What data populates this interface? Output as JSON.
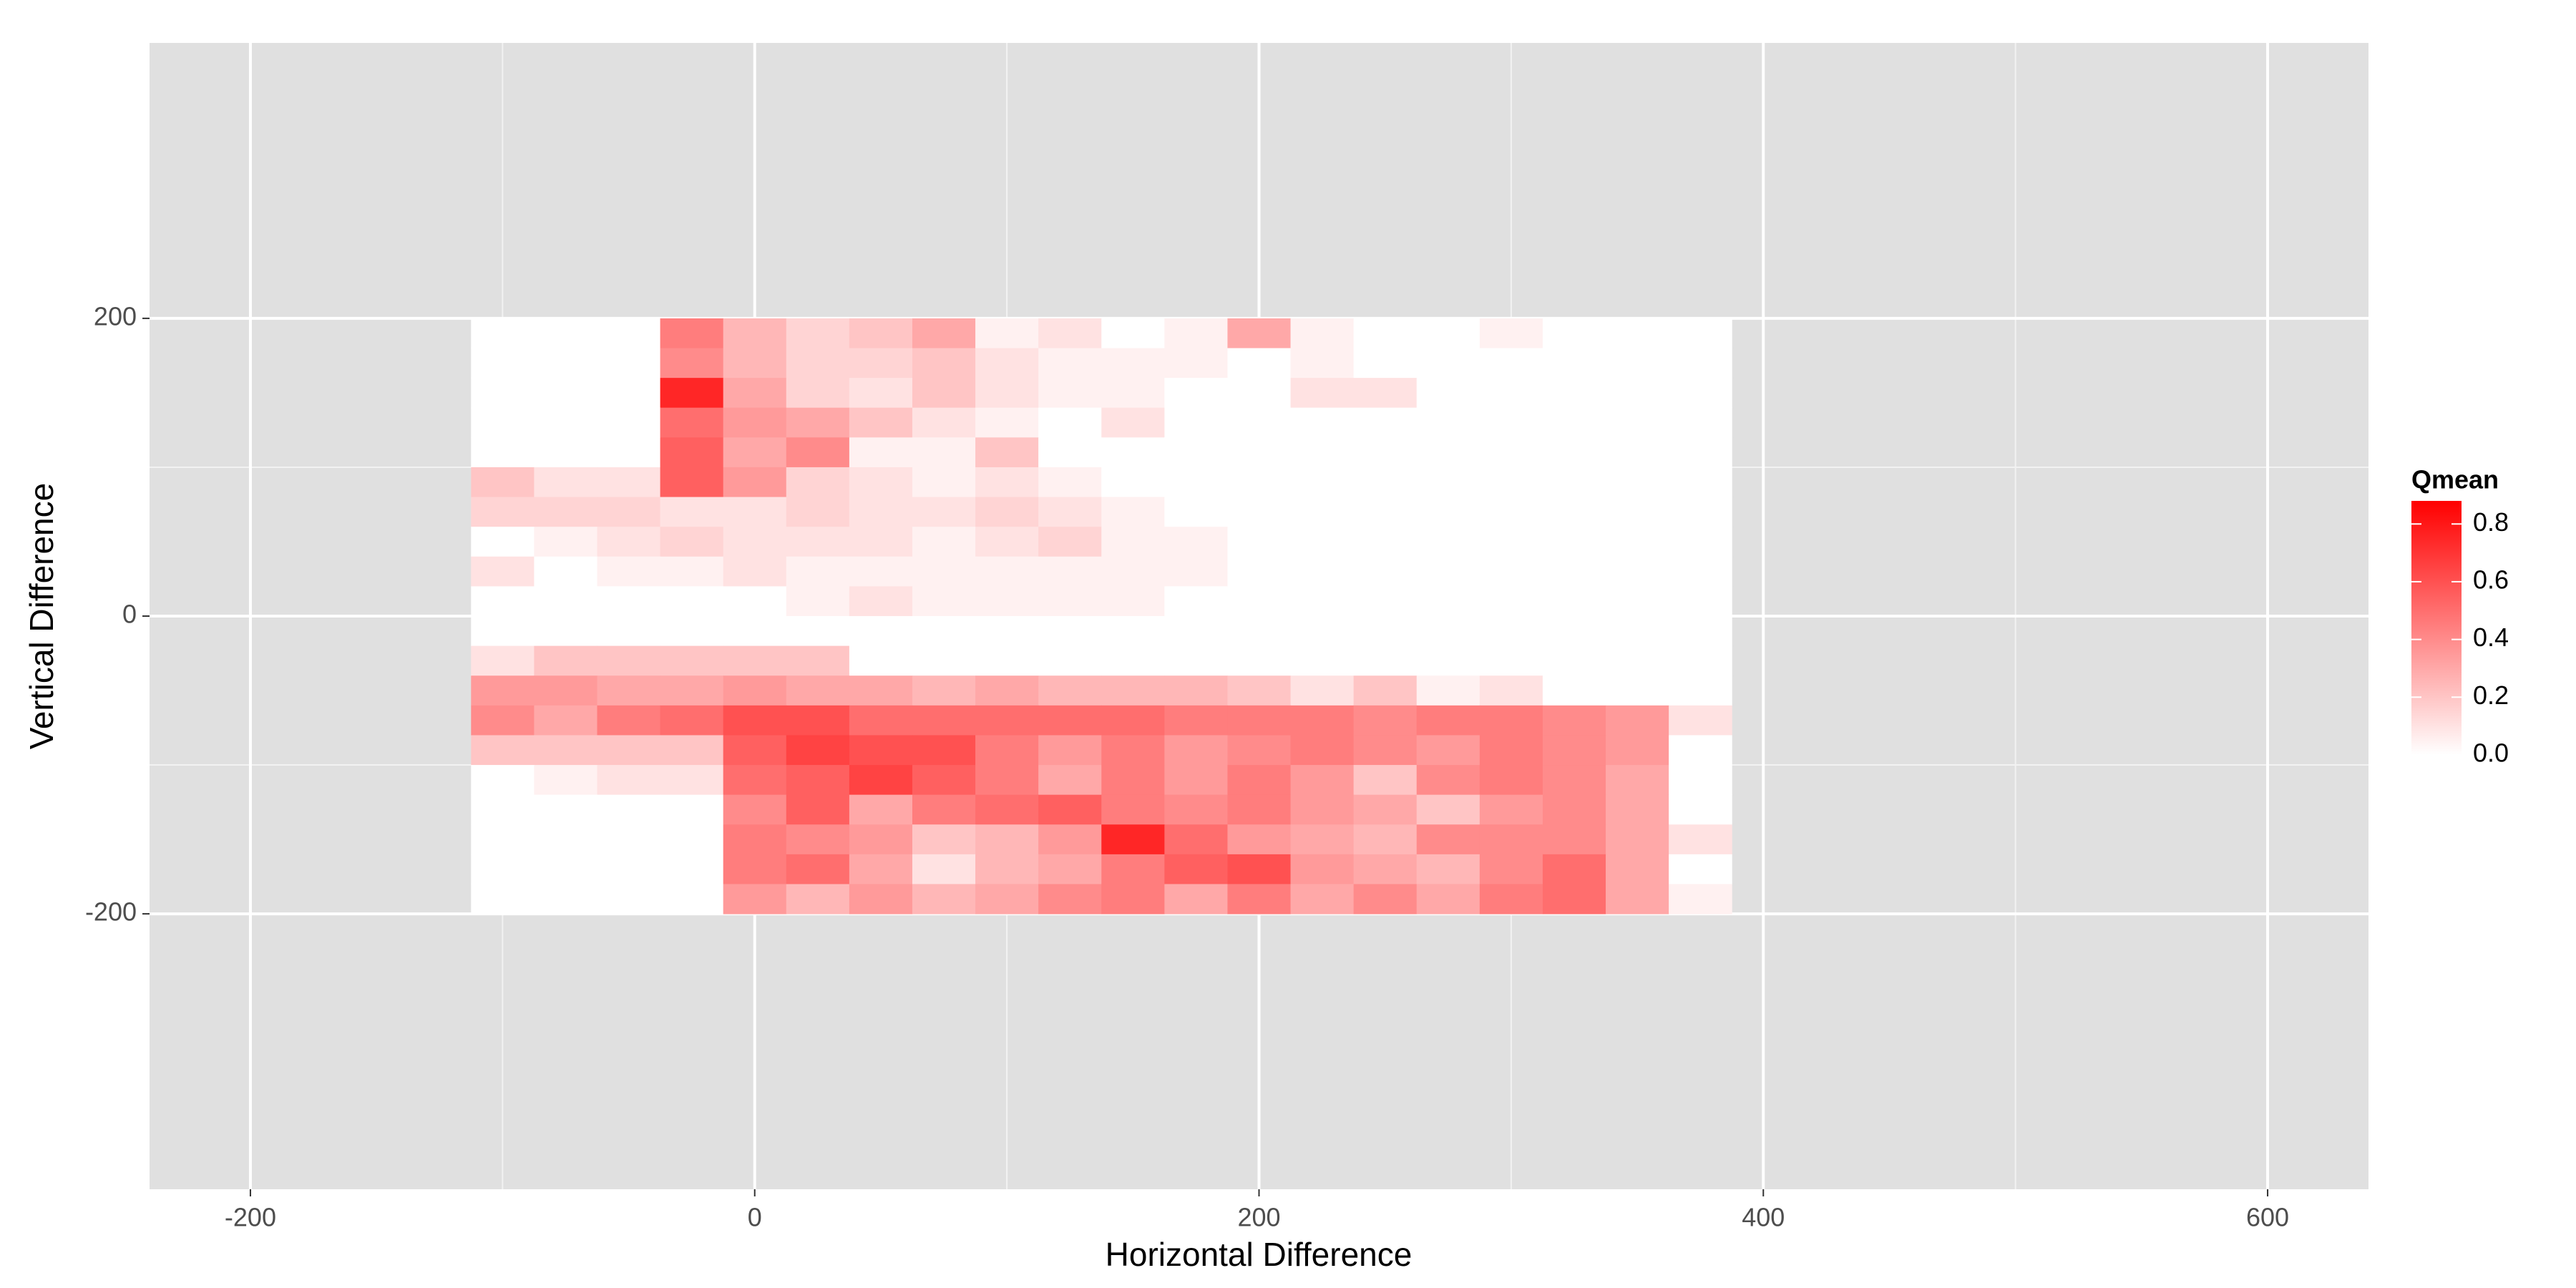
{
  "chart_data": {
    "type": "heatmap",
    "x_label": "Horizontal Difference",
    "y_label": "Vertical Difference",
    "legend_title": "Qmean",
    "xlim": [
      -240,
      640
    ],
    "xticks": [
      -200,
      0,
      200,
      400,
      600
    ],
    "ylim": [
      -385,
      385
    ],
    "yticks": [
      -200,
      0,
      200
    ],
    "grid": true,
    "colors": [
      "#ffffff",
      "#ff0000"
    ],
    "colorlim": [
      0,
      0.88
    ],
    "colorticks": [
      {
        "value": 0,
        "label": "0.0"
      },
      0.2,
      0.4,
      0.6,
      0.8
    ],
    "x_bins": [
      -112.5,
      -87.5,
      -62.5,
      -37.5,
      -12.5,
      12.5,
      37.5,
      62.5,
      87.5,
      112.5,
      137.5,
      162.5,
      187.5,
      212.5,
      237.5,
      262.5,
      287.5,
      312.5,
      337.5,
      362.5,
      387.5
    ],
    "y_bins": [
      200,
      180,
      160,
      140,
      120,
      100,
      80,
      60,
      40,
      20,
      0,
      -20,
      -40,
      -60,
      -80,
      -100,
      -120,
      -140,
      -160,
      -180,
      -200
    ],
    "values": [
      [
        0,
        0,
        0,
        0.45,
        0.25,
        0.15,
        0.2,
        0.3,
        0.05,
        0.1,
        0,
        0.05,
        0.3,
        0.05,
        0,
        0,
        0.05,
        0,
        0,
        0
      ],
      [
        0,
        0,
        0,
        0.4,
        0.25,
        0.15,
        0.15,
        0.2,
        0.1,
        0.05,
        0.05,
        0.05,
        0,
        0.05,
        0,
        0,
        0,
        0,
        0,
        0
      ],
      [
        0,
        0,
        0,
        0.75,
        0.3,
        0.15,
        0.1,
        0.2,
        0.1,
        0.05,
        0.05,
        0,
        0,
        0.1,
        0.1,
        0,
        0,
        0,
        0,
        0
      ],
      [
        0,
        0,
        0,
        0.5,
        0.35,
        0.3,
        0.2,
        0.1,
        0.05,
        0,
        0.1,
        0,
        0,
        0,
        0,
        0,
        0,
        0,
        0,
        0
      ],
      [
        0,
        0,
        0,
        0.55,
        0.3,
        0.4,
        0.05,
        0.05,
        0.2,
        0,
        0,
        0,
        0,
        0,
        0,
        0,
        0,
        0,
        0,
        0
      ],
      [
        0.2,
        0.1,
        0.1,
        0.55,
        0.35,
        0.15,
        0.1,
        0.05,
        0.1,
        0.05,
        0,
        0,
        0,
        0,
        0,
        0,
        0,
        0,
        0,
        0
      ],
      [
        0.15,
        0.15,
        0.15,
        0.1,
        0.1,
        0.15,
        0.1,
        0.1,
        0.15,
        0.1,
        0.05,
        0,
        0,
        0,
        0,
        0,
        0,
        0,
        0,
        0
      ],
      [
        0,
        0.05,
        0.1,
        0.15,
        0.1,
        0.1,
        0.1,
        0.05,
        0.1,
        0.15,
        0.05,
        0.05,
        0,
        0,
        0,
        0,
        0,
        0,
        0,
        0
      ],
      [
        0.1,
        0,
        0.05,
        0.05,
        0.1,
        0.05,
        0.05,
        0.05,
        0.05,
        0.05,
        0.05,
        0.05,
        0,
        0,
        0,
        0,
        0,
        0,
        0,
        0
      ],
      [
        0,
        0,
        0,
        0,
        0,
        0.05,
        0.1,
        0.05,
        0.05,
        0.05,
        0.05,
        0,
        0,
        0,
        0,
        0,
        0,
        0,
        0,
        0
      ],
      [
        0,
        0,
        0,
        0,
        0,
        0,
        0,
        0,
        0,
        0,
        0,
        0,
        0,
        0,
        0,
        0,
        0,
        0,
        0,
        0
      ],
      [
        0.1,
        0.2,
        0.2,
        0.2,
        0.2,
        0.2,
        0,
        0,
        0,
        0,
        0,
        0,
        0,
        0,
        0,
        0,
        0,
        0,
        0,
        0
      ],
      [
        0.35,
        0.35,
        0.3,
        0.3,
        0.35,
        0.3,
        0.3,
        0.25,
        0.3,
        0.25,
        0.25,
        0.25,
        0.2,
        0.1,
        0.2,
        0.05,
        0.1,
        0,
        0,
        0
      ],
      [
        0.4,
        0.3,
        0.45,
        0.5,
        0.6,
        0.6,
        0.5,
        0.5,
        0.5,
        0.5,
        0.5,
        0.45,
        0.45,
        0.45,
        0.4,
        0.45,
        0.45,
        0.4,
        0.35,
        0.1
      ],
      [
        0.2,
        0.2,
        0.2,
        0.2,
        0.55,
        0.65,
        0.6,
        0.6,
        0.45,
        0.35,
        0.45,
        0.35,
        0.4,
        0.45,
        0.4,
        0.35,
        0.45,
        0.4,
        0.35,
        0
      ],
      [
        0,
        0.05,
        0.1,
        0.1,
        0.5,
        0.55,
        0.65,
        0.55,
        0.45,
        0.3,
        0.45,
        0.35,
        0.45,
        0.35,
        0.2,
        0.4,
        0.45,
        0.4,
        0.3,
        0
      ],
      [
        0,
        0,
        0,
        0,
        0.4,
        0.55,
        0.3,
        0.45,
        0.5,
        0.55,
        0.45,
        0.4,
        0.45,
        0.35,
        0.3,
        0.2,
        0.35,
        0.4,
        0.3,
        0
      ],
      [
        0,
        0,
        0,
        0,
        0.45,
        0.4,
        0.35,
        0.2,
        0.25,
        0.35,
        0.75,
        0.5,
        0.35,
        0.3,
        0.25,
        0.4,
        0.4,
        0.4,
        0.3,
        0.1
      ],
      [
        0,
        0,
        0,
        0,
        0.45,
        0.5,
        0.3,
        0.1,
        0.25,
        0.3,
        0.45,
        0.55,
        0.6,
        0.35,
        0.3,
        0.25,
        0.4,
        0.5,
        0.3,
        0
      ],
      [
        0,
        0,
        0,
        0,
        0.35,
        0.25,
        0.35,
        0.25,
        0.3,
        0.4,
        0.45,
        0.3,
        0.45,
        0.3,
        0.4,
        0.3,
        0.45,
        0.5,
        0.3,
        0.05
      ]
    ]
  }
}
